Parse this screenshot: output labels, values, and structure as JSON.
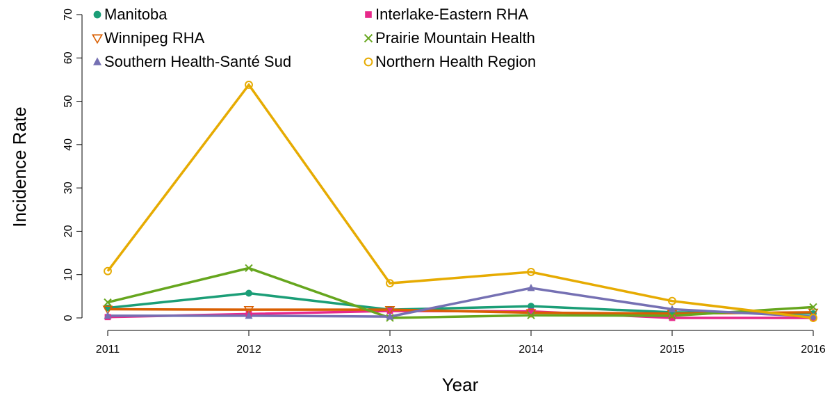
{
  "chart_data": {
    "type": "line",
    "x_label": "Year",
    "y_label": "Incidence Rate",
    "x": [
      2011,
      2012,
      2013,
      2014,
      2015,
      2016
    ],
    "xlim": [
      2011,
      2016
    ],
    "xticks": [
      2011,
      2012,
      2013,
      2014,
      2015,
      2016
    ],
    "ylim": [
      0,
      70
    ],
    "yticks": [
      0,
      10,
      20,
      30,
      40,
      50,
      60,
      70
    ],
    "legend": "top-left",
    "series": [
      {
        "name": "Manitoba",
        "color": "#1b9e77",
        "marker": "filled-circle",
        "values": [
          2.3,
          5.7,
          1.9,
          2.7,
          1.3,
          1.0
        ]
      },
      {
        "name": "Interlake-Eastern RHA",
        "color": "#e7298a",
        "marker": "filled-square",
        "values": [
          0.2,
          0.9,
          1.6,
          1.5,
          0.0,
          0.0
        ]
      },
      {
        "name": "Winnipeg RHA",
        "color": "#d95f02",
        "marker": "open-triangle-down",
        "values": [
          2.0,
          1.9,
          1.9,
          1.2,
          1.0,
          1.3
        ]
      },
      {
        "name": "Prairie Mountain Health",
        "color": "#66a61e",
        "marker": "cross",
        "values": [
          3.6,
          11.5,
          0.0,
          0.6,
          0.5,
          2.5
        ]
      },
      {
        "name": "Southern Health-Santé Sud",
        "color": "#7570b3",
        "marker": "filled-triangle",
        "values": [
          0.5,
          0.5,
          0.3,
          6.9,
          2.0,
          0.3
        ]
      },
      {
        "name": "Northern Health Region",
        "color": "#e6ab02",
        "marker": "open-circle",
        "values": [
          10.8,
          53.8,
          8.0,
          10.6,
          3.9,
          0.0
        ]
      }
    ]
  }
}
